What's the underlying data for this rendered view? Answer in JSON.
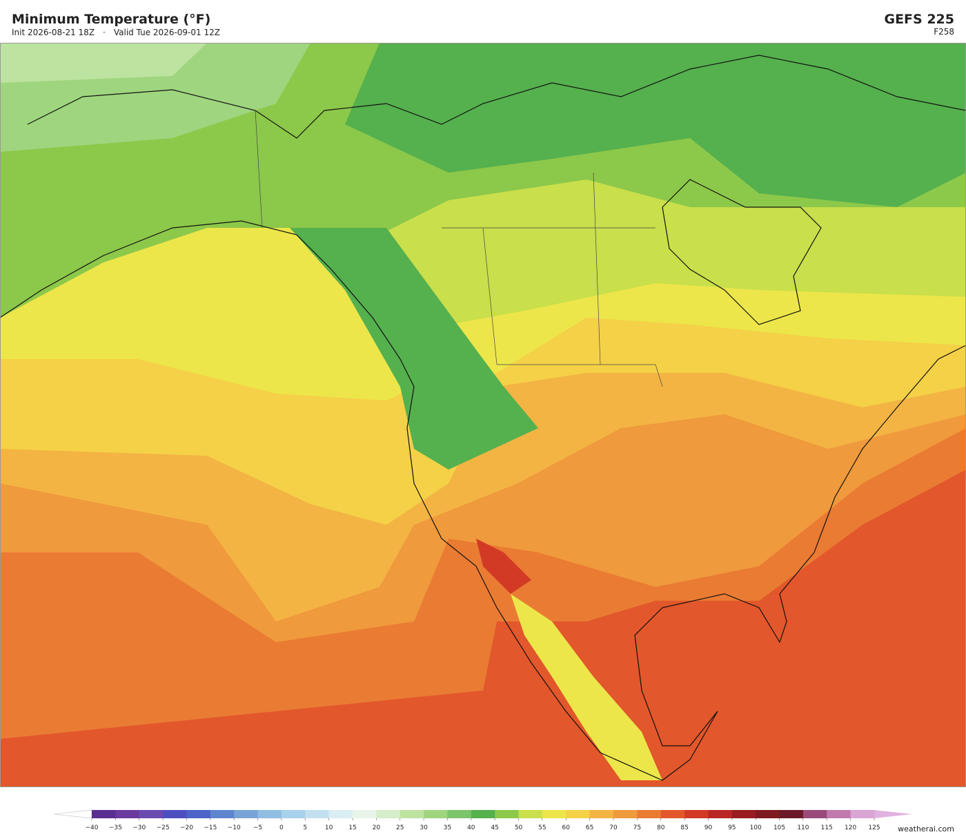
{
  "header": {
    "title": "Minimum Temperature  (°F)",
    "init": "Init 2026-08-21 18Z",
    "separator": "·",
    "valid": "Valid Tue 2026-09-01 12Z",
    "model": "GEFS  225",
    "forecast_hour": "F258"
  },
  "colorbar": {
    "ticks": [
      {
        "value": -40,
        "label": "−40"
      },
      {
        "value": -35,
        "label": "−35"
      },
      {
        "value": -30,
        "label": "−30"
      },
      {
        "value": -25,
        "label": "−25"
      },
      {
        "value": -20,
        "label": "−20"
      },
      {
        "value": -15,
        "label": "−15"
      },
      {
        "value": -10,
        "label": "−10"
      },
      {
        "value": -5,
        "label": "−5"
      },
      0,
      5,
      10,
      15,
      20,
      25,
      30,
      35,
      40,
      45,
      50,
      55,
      60,
      65,
      70,
      75,
      80,
      85,
      90,
      95,
      100,
      105,
      110,
      115,
      120,
      125
    ],
    "colors": [
      "#5a2d91",
      "#6a3a9f",
      "#6b4ab0",
      "#4d4fc0",
      "#4e63c8",
      "#5f85d0",
      "#7aa4d8",
      "#91bde2",
      "#a8d1ec",
      "#c2e0f0",
      "#d9edf3",
      "#e8f4ea",
      "#d5edc8",
      "#bde3a0",
      "#9fd57e",
      "#7cc56a",
      "#55b04e",
      "#8cc84a",
      "#c9df4b",
      "#ece64a",
      "#f5d147",
      "#f3b443",
      "#ef9a3c",
      "#ea7b33",
      "#e2572b",
      "#d23a25",
      "#b92624",
      "#981c20",
      "#7f1a1f",
      "#6c1a29",
      "#9a4a7a",
      "#c179ad",
      "#d9a5d5"
    ],
    "under_color": "#ffffff",
    "over_color": "#e0b2df"
  },
  "watermark": "weatherai.com"
}
